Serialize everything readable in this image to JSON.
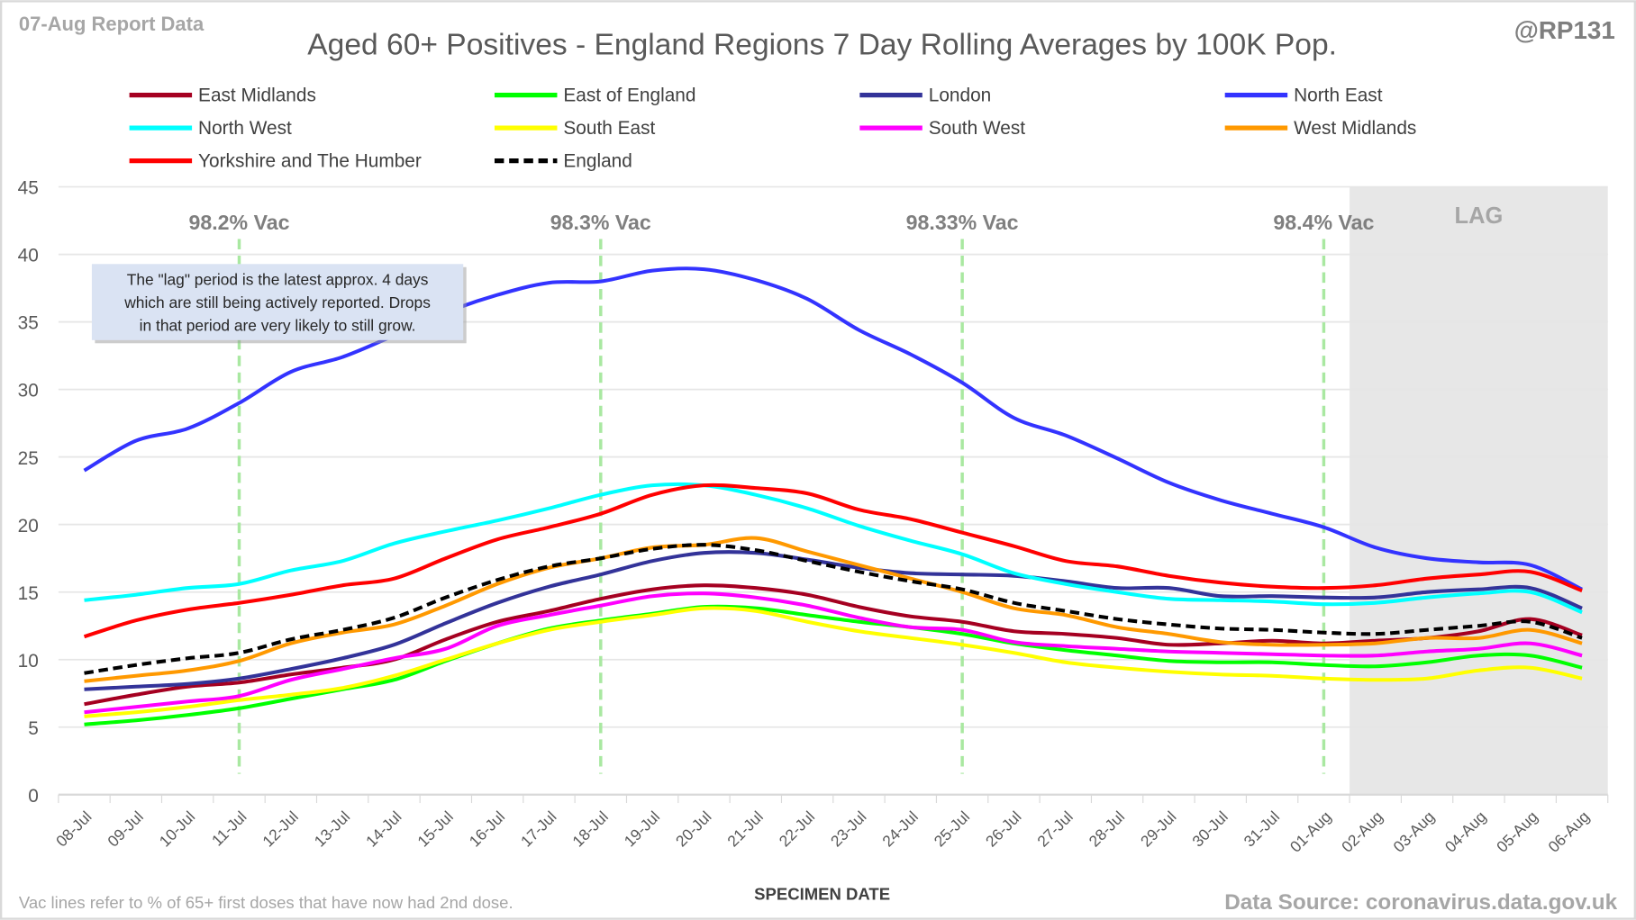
{
  "chart_data": {
    "type": "line",
    "title": "Aged 60+ Positives - England Regions 7 Day Rolling Averages by 100K Pop.",
    "report_label": "07-Aug Report Data",
    "handle": "@RP131",
    "xlabel": "SPECIMEN DATE",
    "ylabel": "",
    "ylim": [
      0,
      45
    ],
    "yticks": [
      0,
      5,
      10,
      15,
      20,
      25,
      30,
      35,
      40,
      45
    ],
    "grid": true,
    "legend_placement": "top",
    "categories": [
      "08-Jul",
      "09-Jul",
      "10-Jul",
      "11-Jul",
      "12-Jul",
      "13-Jul",
      "14-Jul",
      "15-Jul",
      "16-Jul",
      "17-Jul",
      "18-Jul",
      "19-Jul",
      "20-Jul",
      "21-Jul",
      "22-Jul",
      "23-Jul",
      "24-Jul",
      "25-Jul",
      "26-Jul",
      "27-Jul",
      "28-Jul",
      "29-Jul",
      "30-Jul",
      "31-Jul",
      "01-Aug",
      "02-Aug",
      "03-Aug",
      "04-Aug",
      "05-Aug",
      "06-Aug"
    ],
    "series": [
      {
        "name": "East Midlands",
        "color": "#a50021",
        "dashed": false,
        "values": [
          6.7,
          7.4,
          8,
          8.3,
          8.9,
          9.4,
          10,
          11.5,
          12.8,
          13.6,
          14.5,
          15.2,
          15.5,
          15.3,
          14.8,
          13.9,
          13.2,
          12.8,
          12.1,
          11.9,
          11.6,
          11.1,
          11.2,
          11.4,
          11.2,
          11.4,
          11.6,
          12.1,
          13,
          11.8
        ]
      },
      {
        "name": "East of England",
        "color": "#00ff00",
        "dashed": false,
        "values": [
          5.2,
          5.5,
          5.9,
          6.4,
          7.1,
          7.8,
          8.5,
          9.9,
          11.2,
          12.3,
          12.9,
          13.4,
          13.9,
          13.8,
          13.3,
          12.8,
          12.4,
          11.9,
          11.2,
          10.7,
          10.3,
          9.9,
          9.8,
          9.8,
          9.6,
          9.5,
          9.8,
          10.3,
          10.3,
          9.4
        ]
      },
      {
        "name": "London",
        "color": "#333399",
        "dashed": false,
        "values": [
          7.8,
          8,
          8.2,
          8.6,
          9.3,
          10.1,
          11.1,
          12.7,
          14.2,
          15.4,
          16.3,
          17.3,
          17.9,
          17.9,
          17.4,
          16.8,
          16.4,
          16.3,
          16.2,
          15.8,
          15.3,
          15.3,
          14.7,
          14.7,
          14.6,
          14.6,
          15,
          15.2,
          15.3,
          13.8
        ]
      },
      {
        "name": "North East",
        "color": "#3333ff",
        "dashed": false,
        "values": [
          24,
          26.2,
          27.1,
          29,
          31.3,
          32.4,
          34,
          35.7,
          37,
          37.9,
          38,
          38.8,
          38.9,
          38.1,
          36.7,
          34.4,
          32.6,
          30.5,
          27.9,
          26.6,
          24.9,
          23.1,
          21.8,
          20.8,
          19.8,
          18.3,
          17.5,
          17.2,
          17,
          15.2
        ]
      },
      {
        "name": "North West",
        "color": "#00ffff",
        "dashed": false,
        "values": [
          14.4,
          14.8,
          15.3,
          15.6,
          16.6,
          17.3,
          18.6,
          19.5,
          20.3,
          21.2,
          22.2,
          22.9,
          22.9,
          22.2,
          21.2,
          19.9,
          18.8,
          17.8,
          16.4,
          15.6,
          15,
          14.5,
          14.4,
          14.3,
          14.1,
          14.2,
          14.6,
          14.9,
          15,
          13.5
        ]
      },
      {
        "name": "South East",
        "color": "#ffff00",
        "dashed": false,
        "values": [
          5.8,
          6.1,
          6.5,
          7,
          7.4,
          7.9,
          8.8,
          10,
          11.2,
          12.2,
          12.8,
          13.3,
          13.8,
          13.6,
          12.8,
          12.1,
          11.6,
          11.1,
          10.5,
          9.8,
          9.4,
          9.1,
          8.9,
          8.8,
          8.6,
          8.5,
          8.6,
          9.2,
          9.4,
          8.6
        ]
      },
      {
        "name": "South West",
        "color": "#ff00ff",
        "dashed": false,
        "values": [
          6.1,
          6.5,
          6.9,
          7.3,
          8.5,
          9.3,
          10.1,
          10.8,
          12.5,
          13.3,
          14,
          14.7,
          14.9,
          14.6,
          14,
          13.1,
          12.4,
          12.2,
          11.3,
          11,
          10.8,
          10.6,
          10.5,
          10.4,
          10.3,
          10.3,
          10.6,
          10.8,
          11.2,
          10.3
        ]
      },
      {
        "name": "West Midlands",
        "color": "#ff9900",
        "dashed": false,
        "values": [
          8.4,
          8.8,
          9.2,
          9.9,
          11.2,
          12,
          12.6,
          14,
          15.6,
          16.8,
          17.5,
          18.3,
          18.5,
          19,
          18,
          17,
          16,
          15,
          13.8,
          13.3,
          12.4,
          11.9,
          11.3,
          11.1,
          11.1,
          11.2,
          11.6,
          11.6,
          12.2,
          11.2
        ]
      },
      {
        "name": "Yorkshire and The Humber",
        "color": "#ff0000",
        "dashed": false,
        "values": [
          11.7,
          12.9,
          13.7,
          14.2,
          14.8,
          15.5,
          16,
          17.5,
          18.9,
          19.8,
          20.8,
          22.2,
          22.9,
          22.7,
          22.3,
          21.1,
          20.4,
          19.4,
          18.4,
          17.3,
          16.9,
          16.2,
          15.7,
          15.4,
          15.3,
          15.5,
          16,
          16.3,
          16.5,
          15.1
        ]
      },
      {
        "name": "England",
        "color": "#000000",
        "dashed": true,
        "values": [
          9,
          9.6,
          10.1,
          10.5,
          11.5,
          12.2,
          13.1,
          14.6,
          15.9,
          16.9,
          17.5,
          18.2,
          18.5,
          18.1,
          17.3,
          16.5,
          15.8,
          15.2,
          14.2,
          13.6,
          13,
          12.6,
          12.3,
          12.2,
          12,
          11.9,
          12.2,
          12.5,
          12.8,
          11.6
        ]
      }
    ],
    "vac_lines": [
      {
        "label": "98.2% Vac",
        "date": "11-Jul"
      },
      {
        "label": "98.3% Vac",
        "date": "18-Jul"
      },
      {
        "label": "98.33% Vac",
        "date": "25-Jul"
      },
      {
        "label": "98.4% Vac",
        "date": "01-Aug"
      }
    ],
    "lag": {
      "label": "LAG",
      "from": "02-Aug",
      "to": "06-Aug"
    },
    "annotation": [
      "The \"lag\" period is the latest approx. 4 days",
      "which are still being actively reported.  Drops",
      "in that period are very likely to still grow."
    ],
    "footnote": "Vac lines refer to % of 65+ first doses that have now had 2nd dose.",
    "source": "Data Source: coronavirus.data.gov.uk"
  }
}
